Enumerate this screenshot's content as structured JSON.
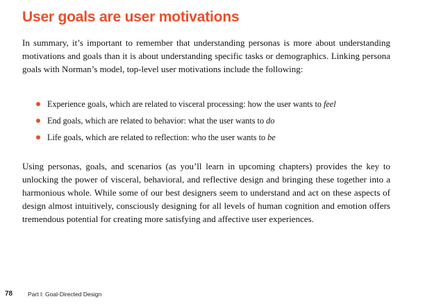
{
  "colors": {
    "heading": "#e94e2a",
    "bullet": "#e94e2a",
    "text": "#111111"
  },
  "heading": "User goals are user motivations",
  "paragraph1": "In summary, it’s important to remember that understanding personas is more about understanding motivations and goals than it is about understanding specific tasks or demographics. Linking persona goals with Norman’s model, top-level user motivations include the following:",
  "bullets": [
    {
      "text": "Experience goals, which are related to visceral processing: how the user wants to ",
      "emphasis": "feel"
    },
    {
      "text": "End goals, which are related to behavior: what the user wants to ",
      "emphasis": "do"
    },
    {
      "text": "Life goals, which are related to reflection: who the user wants to ",
      "emphasis": "be"
    }
  ],
  "paragraph2": "Using personas, goals, and scenarios (as you’ll learn in upcoming chapters) provides the key to unlocking the power of visceral, behavioral, and reflective design and bringing these together into a harmonious whole. While some of our best designers seem to understand and act on these aspects of design almost intuitively, consciously designing for all levels of human cognition and emotion offers tremendous potential for creating more satisfying and affective user experiences.",
  "footer": {
    "page_number": "78",
    "running_head": "Part I: Goal-Directed Design"
  }
}
